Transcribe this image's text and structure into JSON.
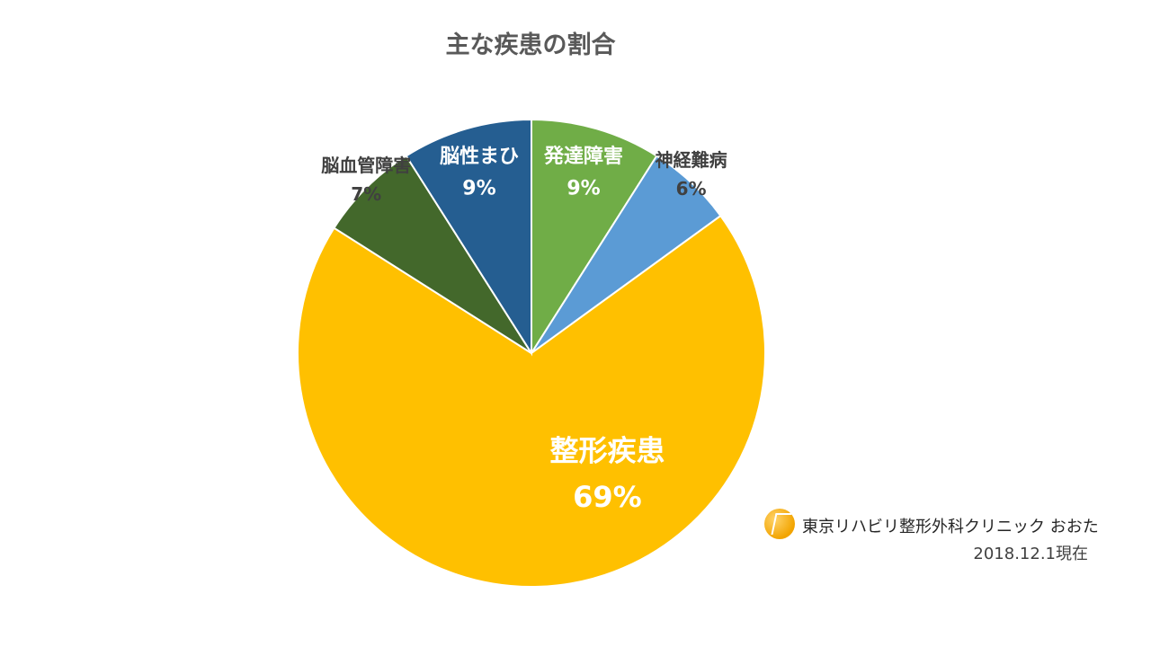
{
  "chart_data": {
    "type": "pie",
    "title": "主な疾患の割合",
    "slices": [
      {
        "label": "発達障害",
        "value": 9,
        "display": "9%",
        "color": "#70AD47",
        "label_color": "#ffffff"
      },
      {
        "label": "神経難病",
        "value": 6,
        "display": "6%",
        "color": "#5B9BD5",
        "label_color": "#404040"
      },
      {
        "label": "整形疾患",
        "value": 69,
        "display": "69%",
        "color": "#FFC000",
        "label_color": "#ffffff"
      },
      {
        "label": "脳血管障害",
        "value": 7,
        "display": "7%",
        "color": "#43682B",
        "label_color": "#404040"
      },
      {
        "label": "脳性まひ",
        "value": 9,
        "display": "9%",
        "color": "#255E91",
        "label_color": "#ffffff"
      }
    ],
    "start": "12 o'clock",
    "direction": "clockwise",
    "legend": "none"
  },
  "footer": {
    "clinic_name": "東京リハビリ整形外科クリニック おおた",
    "as_of": "2018.12.1現在"
  },
  "logo": {
    "icon": "clinic-logo-icon",
    "color": "#F2A400"
  }
}
